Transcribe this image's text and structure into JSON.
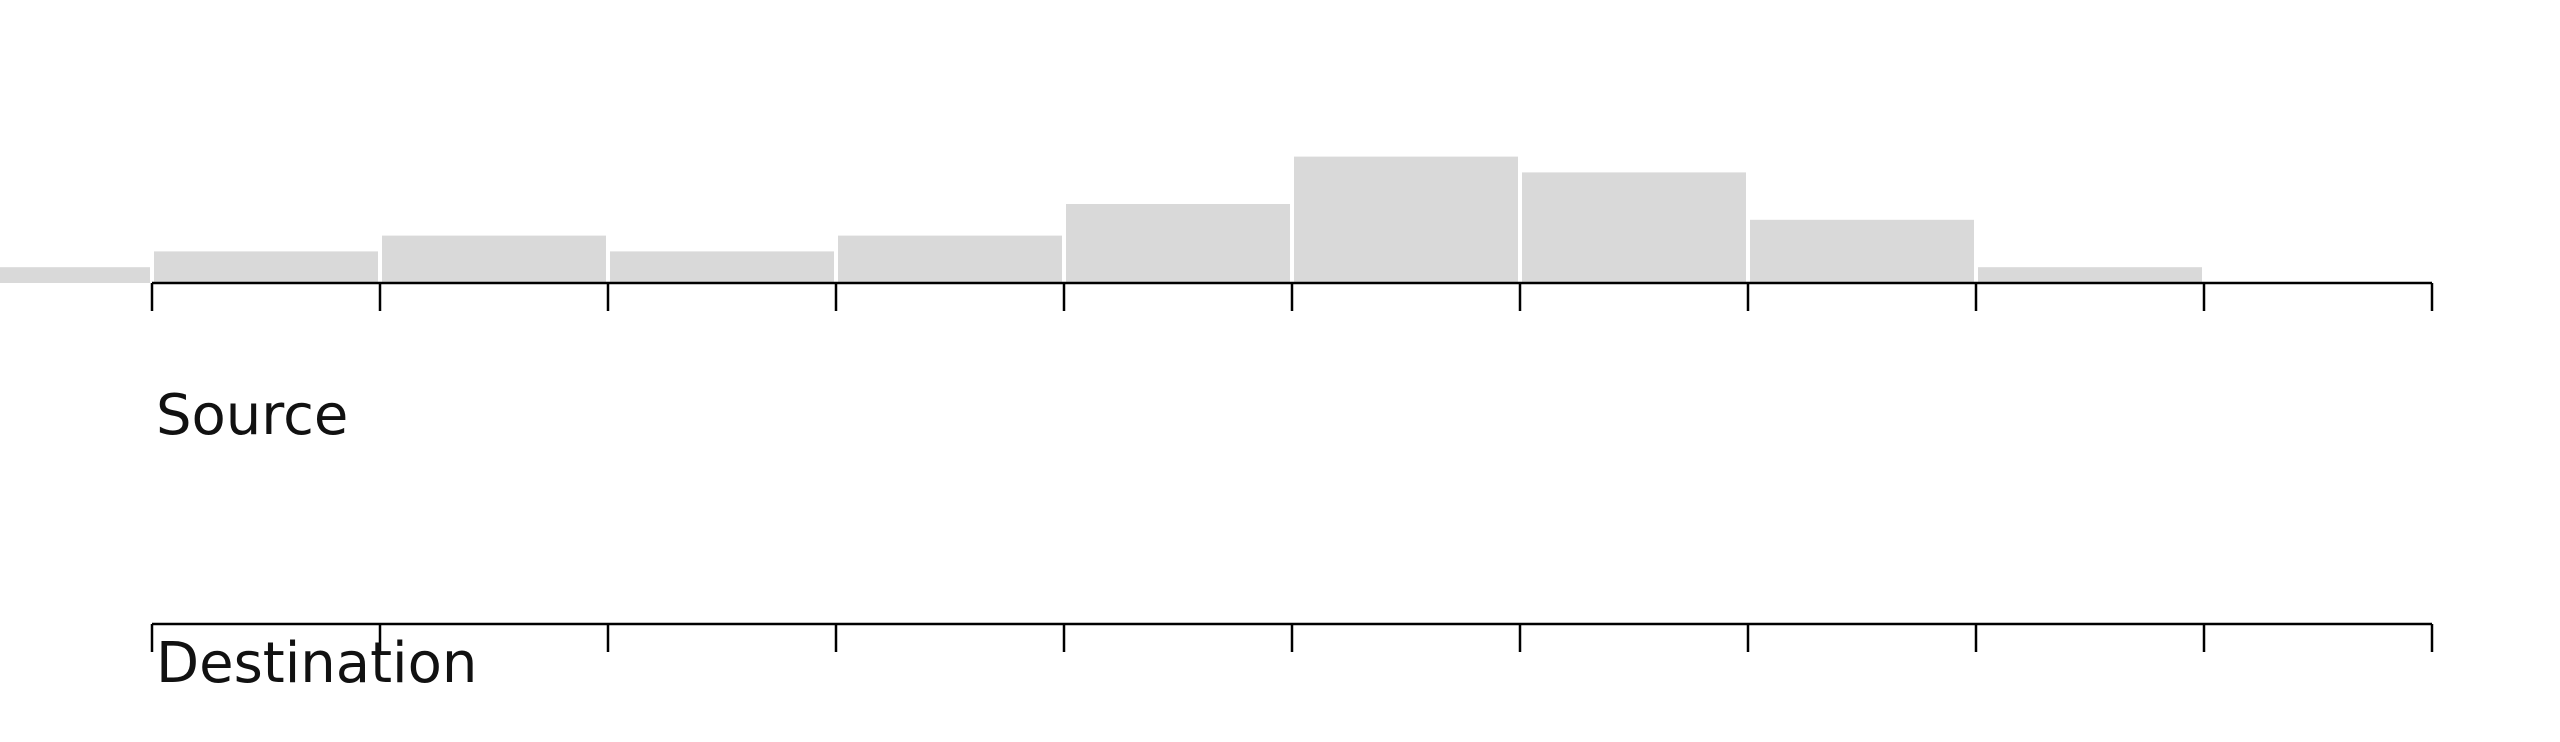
{
  "chart_data": {
    "type": "bar",
    "bins": [
      {
        "start": -1,
        "end": 0,
        "count": 1
      },
      {
        "start": 0,
        "end": 1,
        "count": 2
      },
      {
        "start": 1,
        "end": 2,
        "count": 3
      },
      {
        "start": 2,
        "end": 3,
        "count": 2
      },
      {
        "start": 3,
        "end": 4,
        "count": 3
      },
      {
        "start": 4,
        "end": 5,
        "count": 5
      },
      {
        "start": 5,
        "end": 6,
        "count": 8
      },
      {
        "start": 6,
        "end": 7,
        "count": 7
      },
      {
        "start": 7,
        "end": 8,
        "count": 4
      },
      {
        "start": 8,
        "end": 9,
        "count": 1
      },
      {
        "start": 9,
        "end": 10,
        "count": 0
      }
    ],
    "source_ticks": [
      0,
      1,
      2,
      3,
      4,
      5,
      6,
      7,
      8,
      9,
      10
    ],
    "destination_ticks": [
      0,
      1,
      2,
      3,
      4,
      5,
      6,
      7,
      8,
      9,
      10
    ],
    "xlim": [
      0,
      10
    ],
    "source_label": "Source",
    "destination_label": "Destination",
    "bar_color": "#d9d9d9",
    "axis_color": "#000000",
    "grid": false
  }
}
